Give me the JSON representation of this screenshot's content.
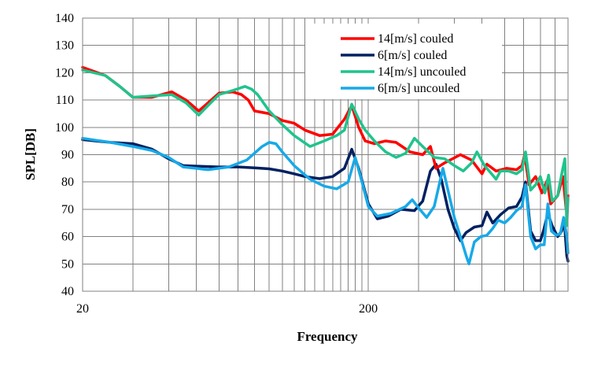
{
  "chart_data": {
    "type": "line",
    "title": "",
    "xlabel": "Frequency",
    "ylabel": "SPL[DB]",
    "x_scale": "log",
    "xlim": [
      20,
      1000
    ],
    "ylim": [
      40,
      140
    ],
    "y_ticks": [
      40,
      50,
      60,
      70,
      80,
      90,
      100,
      110,
      120,
      130,
      140
    ],
    "x_tick_labels": [
      {
        "value": 20,
        "label": "20"
      },
      {
        "value": 200,
        "label": "200"
      }
    ],
    "x_minor_grid": [
      30,
      40,
      50,
      60,
      70,
      80,
      90,
      100,
      110,
      120,
      130,
      140,
      150,
      160,
      170,
      180,
      190,
      300,
      400,
      500,
      600,
      700,
      800,
      900
    ],
    "grid": true,
    "legend_position": "top-right",
    "series": [
      {
        "name": "14[m/s] couled",
        "color": "#ff0000",
        "points": [
          [
            20,
            122
          ],
          [
            24,
            119
          ],
          [
            27,
            115
          ],
          [
            30,
            111
          ],
          [
            35,
            111
          ],
          [
            41,
            113
          ],
          [
            46,
            110
          ],
          [
            51,
            106
          ],
          [
            55,
            109
          ],
          [
            60,
            112.5
          ],
          [
            67,
            113
          ],
          [
            72,
            112
          ],
          [
            76,
            110
          ],
          [
            80,
            106
          ],
          [
            90,
            105
          ],
          [
            100,
            102.5
          ],
          [
            110,
            101.5
          ],
          [
            120,
            99
          ],
          [
            135,
            97
          ],
          [
            150,
            97.5
          ],
          [
            165,
            103
          ],
          [
            175,
            108
          ],
          [
            185,
            100
          ],
          [
            195,
            95
          ],
          [
            210,
            94
          ],
          [
            230,
            95
          ],
          [
            250,
            94.5
          ],
          [
            280,
            91
          ],
          [
            310,
            90
          ],
          [
            330,
            93
          ],
          [
            345,
            85
          ],
          [
            370,
            87
          ],
          [
            420,
            90
          ],
          [
            460,
            88
          ],
          [
            500,
            83
          ],
          [
            520,
            86.5
          ],
          [
            560,
            84
          ],
          [
            610,
            85
          ],
          [
            660,
            84.5
          ],
          [
            690,
            86
          ],
          [
            705,
            90
          ],
          [
            730,
            79
          ],
          [
            770,
            82
          ],
          [
            810,
            76
          ],
          [
            845,
            80.5
          ],
          [
            870,
            72
          ],
          [
            920,
            75
          ],
          [
            960,
            82
          ],
          [
            985,
            70
          ],
          [
            1000,
            75
          ]
        ]
      },
      {
        "name": "6[m/s] couled",
        "color": "#002060",
        "points": [
          [
            20,
            95.5
          ],
          [
            25,
            94.5
          ],
          [
            30,
            94
          ],
          [
            35,
            92
          ],
          [
            40,
            88.5
          ],
          [
            45,
            86
          ],
          [
            50,
            85.8
          ],
          [
            60,
            85.5
          ],
          [
            70,
            85.5
          ],
          [
            80,
            85.2
          ],
          [
            90,
            84.8
          ],
          [
            100,
            84
          ],
          [
            110,
            83
          ],
          [
            120,
            82
          ],
          [
            135,
            81.2
          ],
          [
            150,
            82
          ],
          [
            165,
            85
          ],
          [
            175,
            92
          ],
          [
            185,
            85
          ],
          [
            200,
            72
          ],
          [
            215,
            66.5
          ],
          [
            235,
            67.5
          ],
          [
            260,
            70
          ],
          [
            290,
            69.5
          ],
          [
            310,
            73
          ],
          [
            330,
            84
          ],
          [
            345,
            86.5
          ],
          [
            360,
            81
          ],
          [
            380,
            70
          ],
          [
            400,
            63
          ],
          [
            420,
            58.5
          ],
          [
            440,
            61.5
          ],
          [
            470,
            63.5
          ],
          [
            500,
            64
          ],
          [
            520,
            69
          ],
          [
            545,
            65
          ],
          [
            580,
            68
          ],
          [
            620,
            70.5
          ],
          [
            660,
            71
          ],
          [
            690,
            74.5
          ],
          [
            710,
            80
          ],
          [
            740,
            62
          ],
          [
            770,
            58.5
          ],
          [
            800,
            58.5
          ],
          [
            820,
            62
          ],
          [
            850,
            68.5
          ],
          [
            880,
            64
          ],
          [
            920,
            60
          ],
          [
            950,
            62
          ],
          [
            970,
            66
          ],
          [
            990,
            53
          ],
          [
            1000,
            51
          ]
        ]
      },
      {
        "name": "14[m/s] uncouled",
        "color": "#1fc48c",
        "points": [
          [
            20,
            121
          ],
          [
            24,
            119
          ],
          [
            27,
            115
          ],
          [
            30,
            111
          ],
          [
            35,
            111.5
          ],
          [
            41,
            112
          ],
          [
            46,
            109
          ],
          [
            51,
            104.5
          ],
          [
            55,
            108
          ],
          [
            60,
            112
          ],
          [
            67,
            113.5
          ],
          [
            74,
            115
          ],
          [
            78,
            114
          ],
          [
            82,
            112
          ],
          [
            90,
            106
          ],
          [
            100,
            101
          ],
          [
            110,
            97
          ],
          [
            125,
            93
          ],
          [
            140,
            95
          ],
          [
            155,
            97
          ],
          [
            165,
            99
          ],
          [
            175,
            108.5
          ],
          [
            185,
            103
          ],
          [
            195,
            99
          ],
          [
            210,
            95
          ],
          [
            230,
            91
          ],
          [
            250,
            89
          ],
          [
            270,
            90.5
          ],
          [
            290,
            96
          ],
          [
            310,
            93
          ],
          [
            340,
            89
          ],
          [
            370,
            88.5
          ],
          [
            400,
            86
          ],
          [
            430,
            84
          ],
          [
            460,
            87
          ],
          [
            480,
            91
          ],
          [
            510,
            86
          ],
          [
            540,
            83
          ],
          [
            560,
            81
          ],
          [
            580,
            84
          ],
          [
            620,
            84
          ],
          [
            660,
            83
          ],
          [
            690,
            84.5
          ],
          [
            710,
            91
          ],
          [
            740,
            77
          ],
          [
            770,
            79
          ],
          [
            800,
            82
          ],
          [
            830,
            76
          ],
          [
            855,
            82.5
          ],
          [
            880,
            73
          ],
          [
            920,
            75
          ],
          [
            955,
            84
          ],
          [
            975,
            88.5
          ],
          [
            990,
            64
          ],
          [
            1000,
            74
          ]
        ]
      },
      {
        "name": "6[m/s] uncouled",
        "color": "#17a9e8",
        "points": [
          [
            20,
            96
          ],
          [
            25,
            94.5
          ],
          [
            30,
            93
          ],
          [
            35,
            91.5
          ],
          [
            40,
            89
          ],
          [
            45,
            85.5
          ],
          [
            55,
            84.5
          ],
          [
            65,
            85.5
          ],
          [
            75,
            88
          ],
          [
            85,
            93
          ],
          [
            90,
            94.5
          ],
          [
            95,
            94
          ],
          [
            100,
            91
          ],
          [
            110,
            86
          ],
          [
            125,
            81
          ],
          [
            140,
            78.5
          ],
          [
            155,
            77.5
          ],
          [
            170,
            80
          ],
          [
            180,
            89
          ],
          [
            190,
            80
          ],
          [
            200,
            71
          ],
          [
            215,
            67.5
          ],
          [
            240,
            68.5
          ],
          [
            270,
            71
          ],
          [
            285,
            73.5
          ],
          [
            300,
            70.5
          ],
          [
            320,
            67
          ],
          [
            340,
            71
          ],
          [
            365,
            85
          ],
          [
            380,
            77
          ],
          [
            400,
            67
          ],
          [
            420,
            60
          ],
          [
            440,
            53
          ],
          [
            450,
            50
          ],
          [
            470,
            58
          ],
          [
            495,
            60
          ],
          [
            520,
            60.5
          ],
          [
            545,
            63
          ],
          [
            570,
            66
          ],
          [
            600,
            65
          ],
          [
            630,
            67
          ],
          [
            660,
            69.5
          ],
          [
            690,
            71
          ],
          [
            710,
            79
          ],
          [
            740,
            60
          ],
          [
            770,
            55.5
          ],
          [
            800,
            57
          ],
          [
            825,
            57
          ],
          [
            850,
            72
          ],
          [
            875,
            62
          ],
          [
            910,
            60.5
          ],
          [
            940,
            61
          ],
          [
            965,
            67
          ],
          [
            990,
            60
          ],
          [
            1000,
            54
          ]
        ]
      }
    ]
  }
}
